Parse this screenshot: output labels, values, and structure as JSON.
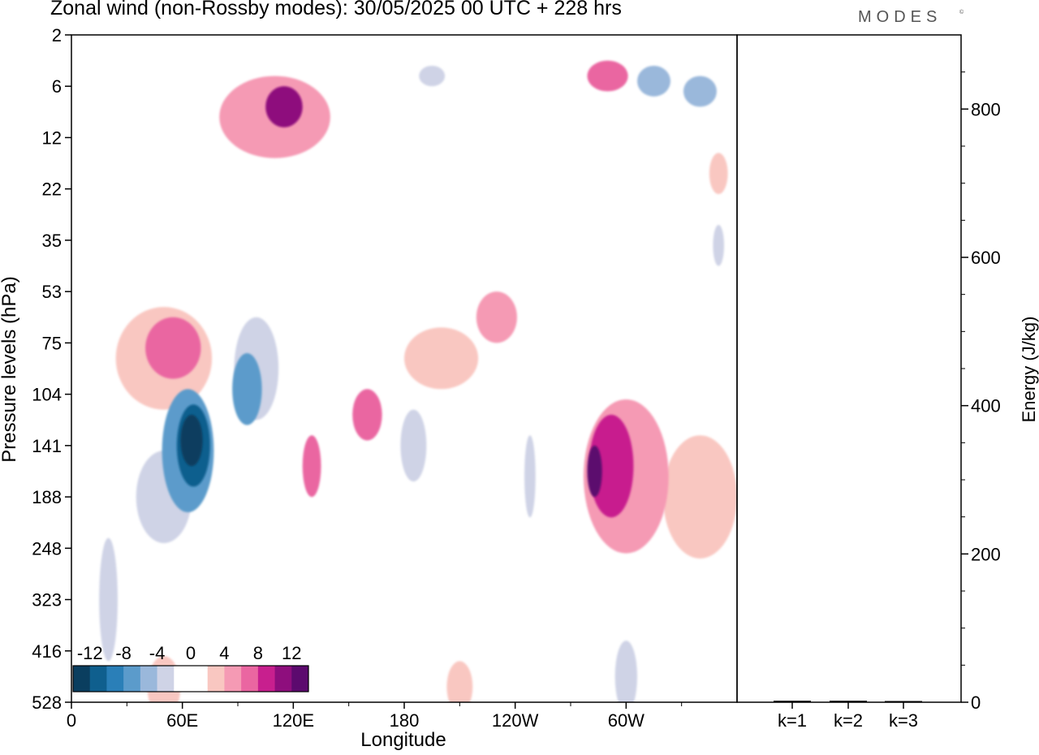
{
  "header": {
    "title": "Zonal wind (non-Rossby modes):  30/05/2025  00 UTC  + 228 hrs",
    "brand": "MODES",
    "brand_mark": "©"
  },
  "chart_data": [
    {
      "type": "heatmap",
      "title": "Zonal wind (non-Rossby modes):  30/05/2025  00 UTC  + 228 hrs",
      "xlabel": "Longitude",
      "ylabel": "Pressure levels (hPa)",
      "x_ticks": [
        "0",
        "60E",
        "120E",
        "180",
        "120W",
        "60W"
      ],
      "x_tick_values": [
        0,
        60,
        120,
        180,
        240,
        300
      ],
      "xlim": [
        0,
        360
      ],
      "y_ticks": [
        "2",
        "6",
        "12",
        "22",
        "35",
        "53",
        "75",
        "104",
        "141",
        "188",
        "248",
        "323",
        "416",
        "528"
      ],
      "y_ticks_top_to_bottom": true,
      "colorbar": {
        "labels": [
          "-12",
          "-8",
          "-4",
          "0",
          "4",
          "8",
          "12"
        ],
        "levels": [
          -14,
          -12,
          -10,
          -8,
          -6,
          -4,
          -2,
          0,
          2,
          4,
          6,
          8,
          10,
          12,
          14
        ],
        "colors": [
          "#0a3e5f",
          "#0f5f8e",
          "#2a7fb8",
          "#5b9bcb",
          "#9ab8db",
          "#cfd3e6",
          "#ffffff",
          "#ffffff",
          "#f9c7c1",
          "#f59ab4",
          "#ea66a1",
          "#c81f8e",
          "#8e0e7d",
          "#5c0a6e"
        ]
      },
      "regions": [
        {
          "lon": 65,
          "lev": 7.9,
          "value": -14,
          "lon_w": 12,
          "lev_w": 1.0
        },
        {
          "lon": 66,
          "lev": 8.0,
          "value": -11,
          "lon_w": 18,
          "lev_w": 1.6
        },
        {
          "lon": 63,
          "lev": 8.1,
          "value": -7,
          "lon_w": 28,
          "lev_w": 2.4
        },
        {
          "lon": 95,
          "lev": 6.9,
          "value": -8,
          "lon_w": 16,
          "lev_w": 1.4
        },
        {
          "lon": 100,
          "lev": 6.5,
          "value": -4,
          "lon_w": 24,
          "lev_w": 2.0
        },
        {
          "lon": 50,
          "lev": 9.0,
          "value": -3,
          "lon_w": 30,
          "lev_w": 1.8
        },
        {
          "lon": 185,
          "lev": 8.0,
          "value": -4,
          "lon_w": 14,
          "lev_w": 1.4
        },
        {
          "lon": 248,
          "lev": 8.6,
          "value": -4,
          "lon_w": 6,
          "lev_w": 1.6
        },
        {
          "lon": 315,
          "lev": 0.9,
          "value": -6,
          "lon_w": 18,
          "lev_w": 0.6
        },
        {
          "lon": 340,
          "lev": 1.1,
          "value": -5,
          "lon_w": 18,
          "lev_w": 0.6
        },
        {
          "lon": 350,
          "lev": 4.1,
          "value": -4,
          "lon_w": 6,
          "lev_w": 0.8
        },
        {
          "lon": 195,
          "lev": 0.8,
          "value": -3,
          "lon_w": 14,
          "lev_w": 0.4
        },
        {
          "lon": 20,
          "lev": 11.0,
          "value": -3,
          "lon_w": 10,
          "lev_w": 2.4
        },
        {
          "lon": 300,
          "lev": 12.5,
          "value": -3,
          "lon_w": 12,
          "lev_w": 1.4
        },
        {
          "lon": 283,
          "lev": 8.5,
          "value": 12,
          "lon_w": 8,
          "lev_w": 1.0
        },
        {
          "lon": 292,
          "lev": 8.4,
          "value": 8,
          "lon_w": 24,
          "lev_w": 2.0
        },
        {
          "lon": 300,
          "lev": 8.6,
          "value": 4,
          "lon_w": 46,
          "lev_w": 3.0
        },
        {
          "lon": 55,
          "lev": 6.1,
          "value": 6,
          "lon_w": 30,
          "lev_w": 1.2
        },
        {
          "lon": 50,
          "lev": 6.3,
          "value": 3,
          "lon_w": 52,
          "lev_w": 2.0
        },
        {
          "lon": 115,
          "lev": 1.4,
          "value": 10,
          "lon_w": 20,
          "lev_w": 0.8
        },
        {
          "lon": 110,
          "lev": 1.6,
          "value": 4,
          "lon_w": 60,
          "lev_w": 1.6
        },
        {
          "lon": 160,
          "lev": 7.4,
          "value": 6,
          "lon_w": 16,
          "lev_w": 1.0
        },
        {
          "lon": 130,
          "lev": 8.4,
          "value": 6,
          "lon_w": 10,
          "lev_w": 1.2
        },
        {
          "lon": 290,
          "lev": 0.8,
          "value": 6,
          "lon_w": 22,
          "lev_w": 0.6
        },
        {
          "lon": 230,
          "lev": 5.5,
          "value": 4,
          "lon_w": 22,
          "lev_w": 1.0
        },
        {
          "lon": 200,
          "lev": 6.3,
          "value": 3,
          "lon_w": 40,
          "lev_w": 1.2
        },
        {
          "lon": 340,
          "lev": 9.0,
          "value": 3,
          "lon_w": 40,
          "lev_w": 2.4
        },
        {
          "lon": 50,
          "lev": 12.7,
          "value": 3,
          "lon_w": 18,
          "lev_w": 1.2
        },
        {
          "lon": 210,
          "lev": 12.7,
          "value": 3,
          "lon_w": 14,
          "lev_w": 1.0
        },
        {
          "lon": 350,
          "lev": 2.7,
          "value": 3,
          "lon_w": 10,
          "lev_w": 0.8
        }
      ]
    },
    {
      "type": "bar",
      "categories": [
        "k=1",
        "k=2",
        "k=3"
      ],
      "values": [
        2,
        2,
        1
      ],
      "ylabel": "Energy (J/kg)",
      "y_ticks": [
        "0",
        "200",
        "400",
        "600",
        "800"
      ],
      "ylim": [
        0,
        900
      ]
    }
  ]
}
